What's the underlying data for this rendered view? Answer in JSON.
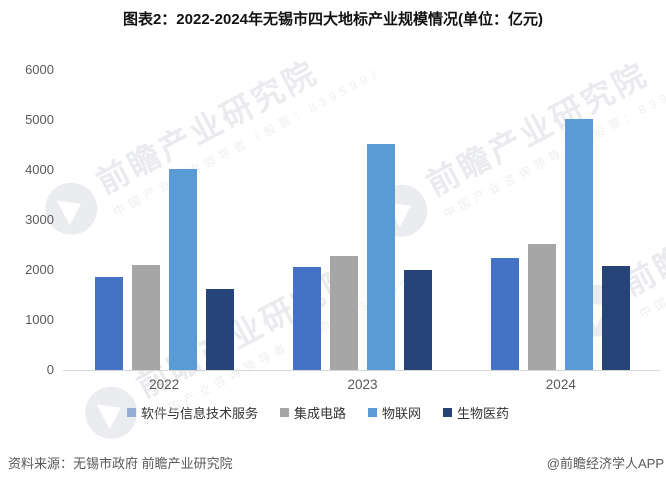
{
  "title": "图表2：2022-2024年无锡市四大地标产业规模情况(单位：亿元)",
  "chart_data": {
    "type": "bar",
    "categories": [
      "2022",
      "2023",
      "2024"
    ],
    "series": [
      {
        "name": "软件与信息技术服务",
        "color": "#4472c4",
        "values": [
          1870,
          2070,
          2240
        ]
      },
      {
        "name": "集成电路",
        "color": "#a6a6a6",
        "values": [
          2100,
          2290,
          2530
        ]
      },
      {
        "name": "物联网",
        "color": "#5b9bd5",
        "values": [
          4030,
          4520,
          5020
        ]
      },
      {
        "name": "生物医药",
        "color": "#264478",
        "values": [
          1630,
          2000,
          2080
        ]
      }
    ],
    "title": "图表2：2022-2024年无锡市四大地标产业规模情况(单位：亿元)",
    "xlabel": "",
    "ylabel": "",
    "ylim": [
      0,
      6000
    ],
    "ytick_step": 1000,
    "yticks": [
      "0",
      "1000",
      "2000",
      "3000",
      "4000",
      "5000",
      "6000"
    ],
    "grid": false,
    "legend_position": "bottom"
  },
  "watermark": {
    "text": "前瞻产业研究院",
    "subtext": "中国产业咨询领导者（股票：839599）"
  },
  "footer": {
    "source": "资料来源：无锡市政府 前瞻产业研究院",
    "credit": "@前瞻经济学人APP"
  },
  "colors": {
    "axis_line": "#d6d6d6",
    "tick_text": "#595959",
    "legend_text": "#333333",
    "title_text": "#111111"
  }
}
